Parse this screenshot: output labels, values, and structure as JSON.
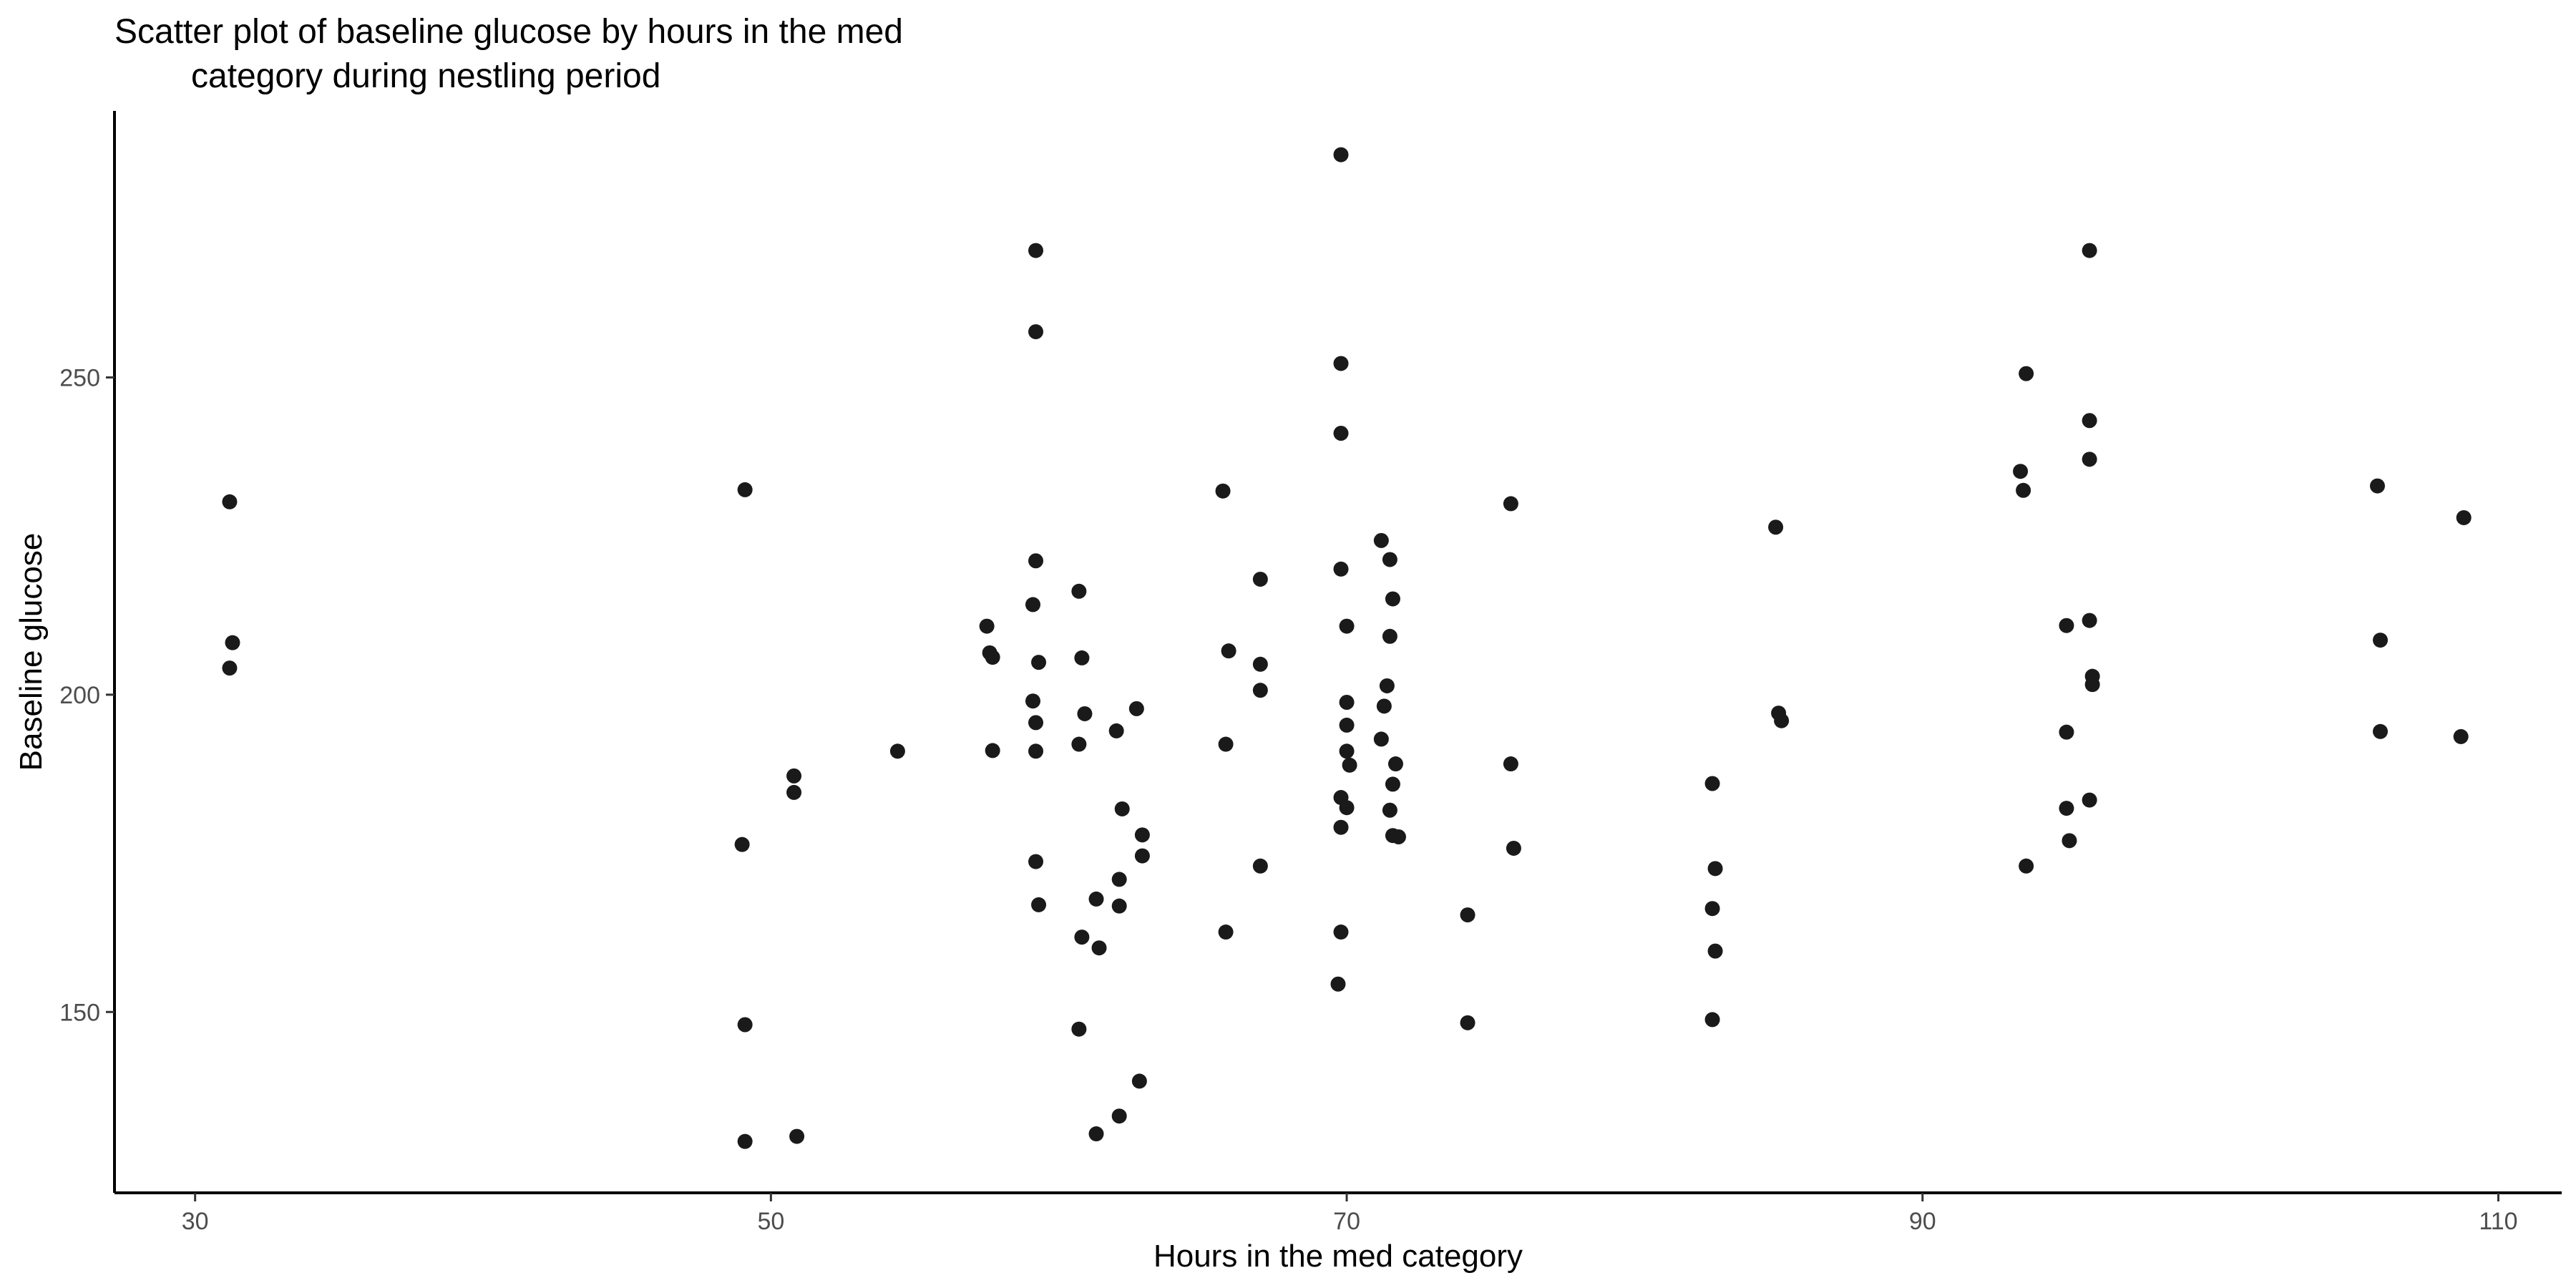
{
  "chart_data": {
    "type": "scatter",
    "title": "Scatter plot of baseline glucose by hours in the med category during nestling period",
    "title_lines": [
      "Scatter plot of baseline glucose by hours in the med",
      "category during nestling period"
    ],
    "xlabel": "Hours in the med category",
    "ylabel": "Baseline glucose",
    "xlim": [
      27.2,
      112.2
    ],
    "ylim": [
      121.5,
      292
    ],
    "xticks": [
      30,
      50,
      70,
      90,
      110
    ],
    "yticks": [
      150,
      200,
      250
    ],
    "grid": false,
    "legend": "none",
    "point_color": "#1a1a1a",
    "points": [
      {
        "x": 31.2,
        "y": 230.4
      },
      {
        "x": 31.3,
        "y": 208.2
      },
      {
        "x": 31.2,
        "y": 204.2
      },
      {
        "x": 49.1,
        "y": 232.3
      },
      {
        "x": 49.0,
        "y": 176.4
      },
      {
        "x": 49.1,
        "y": 148.0
      },
      {
        "x": 49.1,
        "y": 129.6
      },
      {
        "x": 50.8,
        "y": 187.2
      },
      {
        "x": 50.8,
        "y": 184.6
      },
      {
        "x": 50.9,
        "y": 130.4
      },
      {
        "x": 54.4,
        "y": 191.1
      },
      {
        "x": 57.5,
        "y": 210.8
      },
      {
        "x": 57.6,
        "y": 206.6
      },
      {
        "x": 57.7,
        "y": 205.9
      },
      {
        "x": 57.7,
        "y": 191.2
      },
      {
        "x": 59.2,
        "y": 270.0
      },
      {
        "x": 59.2,
        "y": 257.2
      },
      {
        "x": 59.2,
        "y": 221.1
      },
      {
        "x": 59.1,
        "y": 214.2
      },
      {
        "x": 59.3,
        "y": 205.1
      },
      {
        "x": 59.1,
        "y": 199.0
      },
      {
        "x": 59.2,
        "y": 195.6
      },
      {
        "x": 59.2,
        "y": 191.1
      },
      {
        "x": 59.2,
        "y": 173.7
      },
      {
        "x": 59.3,
        "y": 166.9
      },
      {
        "x": 60.7,
        "y": 216.3
      },
      {
        "x": 60.8,
        "y": 205.8
      },
      {
        "x": 60.9,
        "y": 197.0
      },
      {
        "x": 60.7,
        "y": 192.2
      },
      {
        "x": 60.8,
        "y": 161.8
      },
      {
        "x": 60.7,
        "y": 147.3
      },
      {
        "x": 61.3,
        "y": 167.8
      },
      {
        "x": 61.4,
        "y": 160.1
      },
      {
        "x": 61.3,
        "y": 130.8
      },
      {
        "x": 62.0,
        "y": 194.3
      },
      {
        "x": 62.2,
        "y": 182.0
      },
      {
        "x": 62.1,
        "y": 170.9
      },
      {
        "x": 62.1,
        "y": 166.7
      },
      {
        "x": 62.1,
        "y": 133.6
      },
      {
        "x": 62.7,
        "y": 197.8
      },
      {
        "x": 62.9,
        "y": 177.9
      },
      {
        "x": 62.9,
        "y": 174.6
      },
      {
        "x": 62.8,
        "y": 139.1
      },
      {
        "x": 65.7,
        "y": 232.1
      },
      {
        "x": 65.9,
        "y": 206.9
      },
      {
        "x": 65.8,
        "y": 192.2
      },
      {
        "x": 65.8,
        "y": 162.6
      },
      {
        "x": 67.0,
        "y": 218.2
      },
      {
        "x": 67.0,
        "y": 204.8
      },
      {
        "x": 67.0,
        "y": 200.7
      },
      {
        "x": 67.0,
        "y": 173.0
      },
      {
        "x": 69.8,
        "y": 285.1
      },
      {
        "x": 69.8,
        "y": 252.2
      },
      {
        "x": 69.8,
        "y": 241.2
      },
      {
        "x": 69.8,
        "y": 219.8
      },
      {
        "x": 70.0,
        "y": 210.8
      },
      {
        "x": 70.0,
        "y": 198.8
      },
      {
        "x": 70.0,
        "y": 195.2
      },
      {
        "x": 70.0,
        "y": 191.1
      },
      {
        "x": 70.1,
        "y": 188.9
      },
      {
        "x": 69.8,
        "y": 183.8
      },
      {
        "x": 70.0,
        "y": 182.2
      },
      {
        "x": 69.8,
        "y": 179.1
      },
      {
        "x": 69.8,
        "y": 162.6
      },
      {
        "x": 69.7,
        "y": 154.4
      },
      {
        "x": 71.2,
        "y": 224.3
      },
      {
        "x": 71.5,
        "y": 221.3
      },
      {
        "x": 71.6,
        "y": 215.1
      },
      {
        "x": 71.5,
        "y": 209.2
      },
      {
        "x": 71.4,
        "y": 201.4
      },
      {
        "x": 71.3,
        "y": 198.2
      },
      {
        "x": 71.2,
        "y": 193.0
      },
      {
        "x": 71.7,
        "y": 189.1
      },
      {
        "x": 71.6,
        "y": 185.9
      },
      {
        "x": 71.5,
        "y": 181.8
      },
      {
        "x": 71.6,
        "y": 177.8
      },
      {
        "x": 71.8,
        "y": 177.6
      },
      {
        "x": 74.2,
        "y": 165.3
      },
      {
        "x": 74.2,
        "y": 148.3
      },
      {
        "x": 75.7,
        "y": 230.1
      },
      {
        "x": 75.7,
        "y": 189.1
      },
      {
        "x": 75.8,
        "y": 175.8
      },
      {
        "x": 82.7,
        "y": 186.0
      },
      {
        "x": 82.8,
        "y": 172.6
      },
      {
        "x": 82.7,
        "y": 166.3
      },
      {
        "x": 82.8,
        "y": 159.6
      },
      {
        "x": 82.7,
        "y": 148.8
      },
      {
        "x": 84.9,
        "y": 226.4
      },
      {
        "x": 85.0,
        "y": 197.1
      },
      {
        "x": 85.1,
        "y": 195.9
      },
      {
        "x": 93.6,
        "y": 250.6
      },
      {
        "x": 93.4,
        "y": 235.2
      },
      {
        "x": 93.5,
        "y": 232.2
      },
      {
        "x": 93.6,
        "y": 173.0
      },
      {
        "x": 95.8,
        "y": 270.0
      },
      {
        "x": 95.8,
        "y": 243.2
      },
      {
        "x": 95.8,
        "y": 237.1
      },
      {
        "x": 95.8,
        "y": 211.7
      },
      {
        "x": 95.0,
        "y": 210.9
      },
      {
        "x": 95.9,
        "y": 202.9
      },
      {
        "x": 95.9,
        "y": 201.6
      },
      {
        "x": 95.0,
        "y": 194.1
      },
      {
        "x": 95.8,
        "y": 183.4
      },
      {
        "x": 95.0,
        "y": 182.1
      },
      {
        "x": 95.1,
        "y": 177.0
      },
      {
        "x": 105.8,
        "y": 232.9
      },
      {
        "x": 105.9,
        "y": 208.6
      },
      {
        "x": 105.9,
        "y": 194.2
      },
      {
        "x": 108.8,
        "y": 227.9
      },
      {
        "x": 108.7,
        "y": 193.4
      }
    ]
  }
}
